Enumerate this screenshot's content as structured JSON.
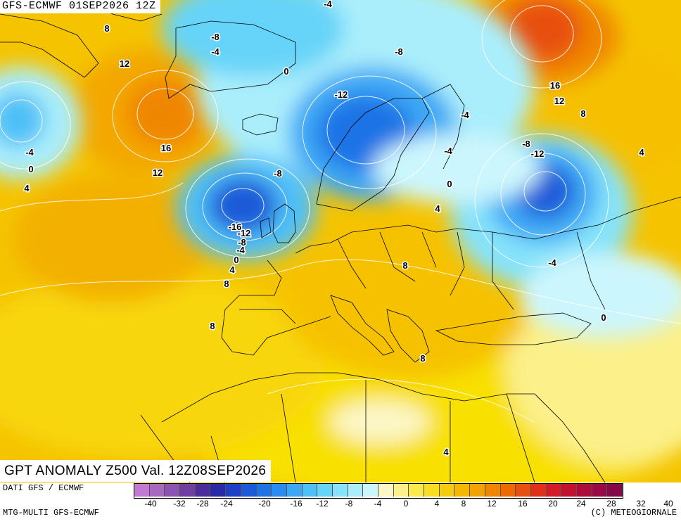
{
  "header": {
    "run": "GFS-ECMWF 01SEP2026 12Z"
  },
  "title": "GPT ANOMALY Z500 Val. 12Z08SEP2026",
  "source_left": "DATI GFS / ECMWF",
  "source_bottom": "MTG-MULTI GFS-ECMWF",
  "copyright": "(C) METEOGIORNALE",
  "colors": {
    "ocean_base": "#f5c400",
    "land_lines": "#000000",
    "contours": "#ffffff"
  },
  "scale": {
    "colors": [
      "#c07ad0",
      "#a668c0",
      "#8a55b0",
      "#6e3fa0",
      "#4b2c9a",
      "#2a2aa8",
      "#1f3fc4",
      "#1c5ad8",
      "#1f73e6",
      "#2a8cf0",
      "#3ca8f5",
      "#4fc0f7",
      "#66d4f8",
      "#86e3fa",
      "#aaeefc",
      "#ccf6fd",
      "#fbf7c6",
      "#fbf08a",
      "#faea50",
      "#f8de1e",
      "#f6cc10",
      "#f5b800",
      "#f3a200",
      "#f08600",
      "#ec6a00",
      "#e84f10",
      "#e0301a",
      "#d41a26",
      "#c21230",
      "#ad0c3a",
      "#990a44",
      "#850848"
    ],
    "ticks": [
      "-40",
      "-32",
      "-28",
      "-24",
      "-20",
      "-16",
      "-12",
      "-8",
      "-4",
      "0",
      "4",
      "8",
      "12",
      "16",
      "20",
      "24",
      "28",
      "32",
      "40"
    ]
  },
  "contour_labels": [
    {
      "text": "-4"
    },
    {
      "text": "8"
    },
    {
      "text": "-8"
    },
    {
      "text": "-4"
    },
    {
      "text": "12"
    },
    {
      "text": "0"
    },
    {
      "text": "-8"
    },
    {
      "text": "-12"
    },
    {
      "text": "16"
    },
    {
      "text": "12"
    },
    {
      "text": "-4"
    },
    {
      "text": "8"
    },
    {
      "text": "-4"
    },
    {
      "text": "16"
    },
    {
      "text": "-4"
    },
    {
      "text": "0"
    },
    {
      "text": "-8"
    },
    {
      "text": "-12"
    },
    {
      "text": "12"
    },
    {
      "text": "4"
    },
    {
      "text": "-8"
    },
    {
      "text": "4"
    },
    {
      "text": "0"
    },
    {
      "text": "4"
    },
    {
      "text": "-16"
    },
    {
      "text": "-12"
    },
    {
      "text": "-8"
    },
    {
      "text": "-4"
    },
    {
      "text": "0"
    },
    {
      "text": "4"
    },
    {
      "text": "8"
    },
    {
      "text": "8"
    },
    {
      "text": "-4"
    },
    {
      "text": "8"
    },
    {
      "text": "0"
    },
    {
      "text": "8"
    },
    {
      "text": "4"
    }
  ]
}
